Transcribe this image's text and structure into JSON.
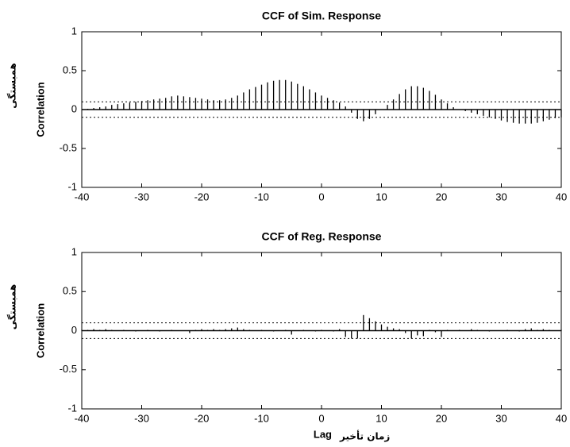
{
  "chart_data": [
    {
      "type": "stem",
      "title": "CCF of Sim. Response",
      "ylabel": "Correlation",
      "ylabel_fa": "همبستگی",
      "x": [
        -40,
        -39,
        -38,
        -37,
        -36,
        -35,
        -34,
        -33,
        -32,
        -31,
        -30,
        -29,
        -28,
        -27,
        -26,
        -25,
        -24,
        -23,
        -22,
        -21,
        -20,
        -19,
        -18,
        -17,
        -16,
        -15,
        -14,
        -13,
        -12,
        -11,
        -10,
        -9,
        -8,
        -7,
        -6,
        -5,
        -4,
        -3,
        -2,
        -1,
        0,
        1,
        2,
        3,
        4,
        5,
        6,
        7,
        8,
        9,
        10,
        11,
        12,
        13,
        14,
        15,
        16,
        17,
        18,
        19,
        20,
        21,
        22,
        23,
        24,
        25,
        26,
        27,
        28,
        29,
        30,
        31,
        32,
        33,
        34,
        35,
        36,
        37,
        38,
        39,
        40
      ],
      "values": [
        0,
        0.01,
        0.02,
        0.03,
        0.04,
        0.06,
        0.07,
        0.08,
        0.09,
        0.1,
        0.11,
        0.12,
        0.13,
        0.14,
        0.15,
        0.17,
        0.18,
        0.17,
        0.16,
        0.15,
        0.14,
        0.13,
        0.12,
        0.12,
        0.13,
        0.15,
        0.18,
        0.22,
        0.26,
        0.29,
        0.32,
        0.35,
        0.37,
        0.38,
        0.38,
        0.36,
        0.33,
        0.3,
        0.26,
        0.22,
        0.18,
        0.15,
        0.12,
        0.09,
        0.04,
        -0.04,
        -0.12,
        -0.15,
        -0.12,
        -0.06,
        0,
        0.06,
        0.13,
        0.2,
        0.26,
        0.3,
        0.3,
        0.28,
        0.24,
        0.19,
        0.13,
        0.08,
        0.03,
        0,
        -0.02,
        -0.04,
        -0.06,
        -0.08,
        -0.1,
        -0.12,
        -0.14,
        -0.16,
        -0.17,
        -0.18,
        -0.18,
        -0.18,
        -0.17,
        -0.15,
        -0.13,
        -0.11,
        -0.1
      ],
      "color": "#000000",
      "bounds": [
        0.1,
        -0.1
      ],
      "xlim": [
        -40,
        40
      ],
      "xticks": [
        -40,
        -30,
        -20,
        -10,
        0,
        10,
        20,
        30,
        40
      ],
      "ylim": [
        -1,
        1
      ],
      "yticks": [
        -1,
        -0.5,
        0,
        0.5,
        1
      ]
    },
    {
      "type": "stem",
      "title": "CCF of Reg. Response",
      "ylabel": "Correlation",
      "ylabel_fa": "همبستگی",
      "xlabel": "Lag",
      "xlabel_fa": "زمان تأخیر",
      "x": [
        -40,
        -39,
        -38,
        -37,
        -36,
        -35,
        -34,
        -33,
        -32,
        -31,
        -30,
        -29,
        -28,
        -27,
        -26,
        -25,
        -24,
        -23,
        -22,
        -21,
        -20,
        -19,
        -18,
        -17,
        -16,
        -15,
        -14,
        -13,
        -12,
        -11,
        -10,
        -9,
        -8,
        -7,
        -6,
        -5,
        -4,
        -3,
        -2,
        -1,
        0,
        1,
        2,
        3,
        4,
        5,
        6,
        7,
        8,
        9,
        10,
        11,
        12,
        13,
        14,
        15,
        16,
        17,
        18,
        19,
        20,
        21,
        22,
        23,
        24,
        25,
        26,
        27,
        28,
        29,
        30,
        31,
        32,
        33,
        34,
        35,
        36,
        37,
        38,
        39,
        40
      ],
      "values": [
        0.01,
        0.01,
        0.02,
        0.01,
        0.02,
        0.01,
        0,
        0.01,
        0,
        -0.01,
        0,
        0.01,
        0,
        -0.01,
        0,
        0.01,
        0,
        0,
        -0.03,
        0.01,
        0.02,
        0.01,
        0.02,
        0.01,
        0.02,
        0.03,
        0.04,
        0.02,
        0.01,
        0,
        0.01,
        0,
        -0.01,
        0,
        0.01,
        -0.05,
        0,
        0.01,
        0,
        -0.01,
        0.01,
        0,
        -0.01,
        0.02,
        -0.08,
        -0.1,
        -0.1,
        0.2,
        0.16,
        0.12,
        0.08,
        0.05,
        0.03,
        0.02,
        -0.03,
        -0.1,
        -0.06,
        -0.07,
        0.01,
        -0.02,
        -0.08,
        0.01,
        0,
        0.01,
        0,
        0.02,
        0.01,
        0,
        -0.01,
        0,
        0,
        0.01,
        0,
        -0.01,
        0.02,
        0.03,
        0.01,
        0.02,
        0.01,
        0,
        0.01
      ],
      "color": "#000000",
      "bounds": [
        0.1,
        -0.1
      ],
      "xlim": [
        -40,
        40
      ],
      "xticks": [
        -40,
        -30,
        -20,
        -10,
        0,
        10,
        20,
        30,
        40
      ],
      "ylim": [
        -1,
        1
      ],
      "yticks": [
        -1,
        -0.5,
        0,
        0.5,
        1
      ]
    }
  ]
}
